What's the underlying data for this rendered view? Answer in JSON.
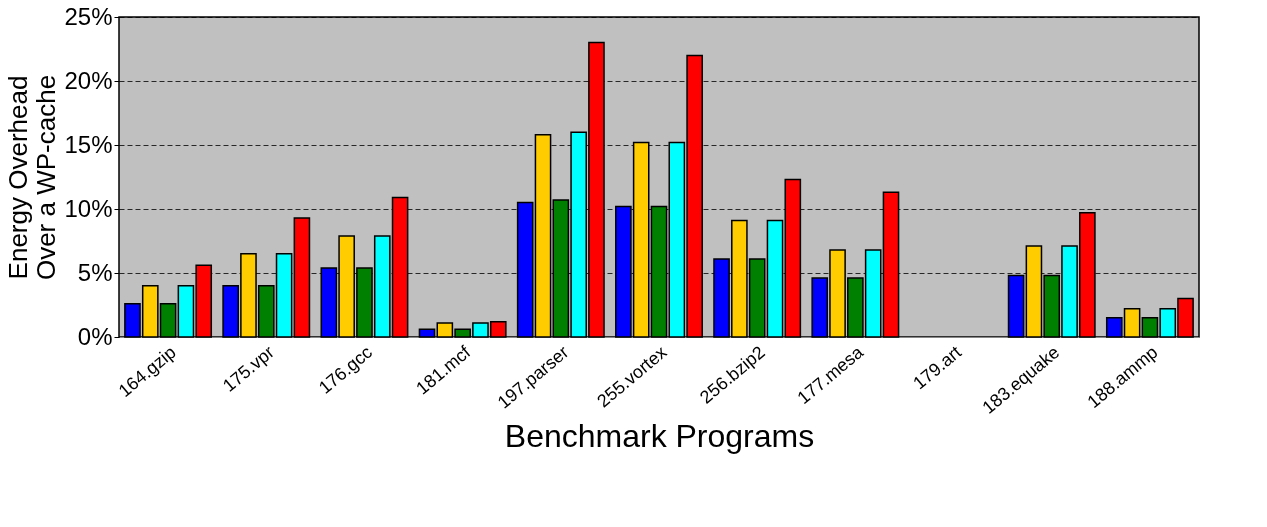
{
  "chart_data": {
    "type": "bar",
    "xlabel": "Benchmark Programs",
    "ylabel": "Energy Overhead\nOver a WP-cache",
    "categories": [
      "164.gzip",
      "175.vpr",
      "176.gcc",
      "181.mcf",
      "197.parser",
      "255.vortex",
      "256.bzip2",
      "177.mesa",
      "179.art",
      "183.equake",
      "188.ammp"
    ],
    "series": [
      {
        "color": "#0000ff",
        "values": [
          2.6,
          4.0,
          5.4,
          0.6,
          10.5,
          10.2,
          6.1,
          4.6,
          null,
          4.8,
          1.5
        ]
      },
      {
        "color": "#ffcc00",
        "values": [
          4.0,
          6.5,
          7.9,
          1.1,
          15.8,
          15.2,
          9.1,
          6.8,
          null,
          7.1,
          2.2
        ]
      },
      {
        "color": "#008000",
        "values": [
          2.6,
          4.0,
          5.4,
          0.6,
          10.7,
          10.2,
          6.1,
          4.6,
          null,
          4.8,
          1.5
        ]
      },
      {
        "color": "#00ffff",
        "values": [
          4.0,
          6.5,
          7.9,
          1.1,
          16.0,
          15.2,
          9.1,
          6.8,
          null,
          7.1,
          2.2
        ]
      },
      {
        "color": "#ff0000",
        "values": [
          5.6,
          9.3,
          10.9,
          1.2,
          23.0,
          22.0,
          12.3,
          11.3,
          null,
          9.7,
          3.0
        ]
      }
    ],
    "ylim": [
      0,
      25
    ],
    "yticks": [
      {
        "value": 0,
        "label": "0%"
      },
      {
        "value": 5,
        "label": "5%"
      },
      {
        "value": 10,
        "label": "10%"
      },
      {
        "value": 15,
        "label": "15%"
      },
      {
        "value": 20,
        "label": "20%"
      },
      {
        "value": 25,
        "label": "25%"
      }
    ],
    "grid": "y",
    "legend": false
  }
}
